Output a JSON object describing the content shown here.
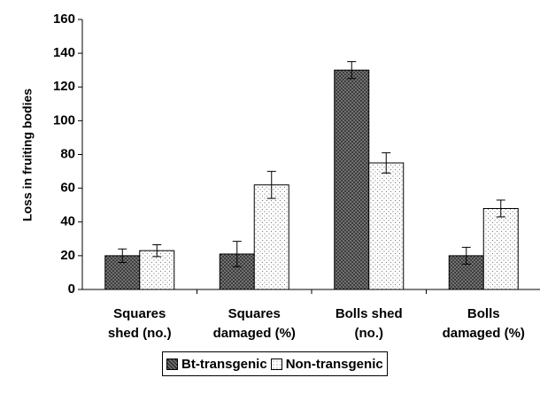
{
  "chart_data": {
    "type": "bar",
    "y_label": "Loss in fruiting bodies",
    "categories": [
      "Squares\nshed (no.)",
      "Squares\ndamaged (%)",
      "Bolls shed\n(no.)",
      "Bolls\ndamaged (%)"
    ],
    "series": [
      {
        "name": "Bt-transgenic",
        "color": "#333333",
        "pattern": "crosshatch",
        "values": [
          20,
          21,
          130,
          20
        ],
        "errors": [
          4,
          7.5,
          5,
          5
        ]
      },
      {
        "name": "Non-transgenic",
        "color": "#ffffff",
        "pattern": "dots",
        "values": [
          23,
          62,
          75,
          48
        ],
        "errors": [
          3.5,
          8,
          6,
          5
        ]
      }
    ],
    "ylim": [
      0,
      160
    ],
    "yticks": [
      0,
      20,
      40,
      60,
      80,
      100,
      120,
      140,
      160
    ],
    "legend": "bottom"
  }
}
